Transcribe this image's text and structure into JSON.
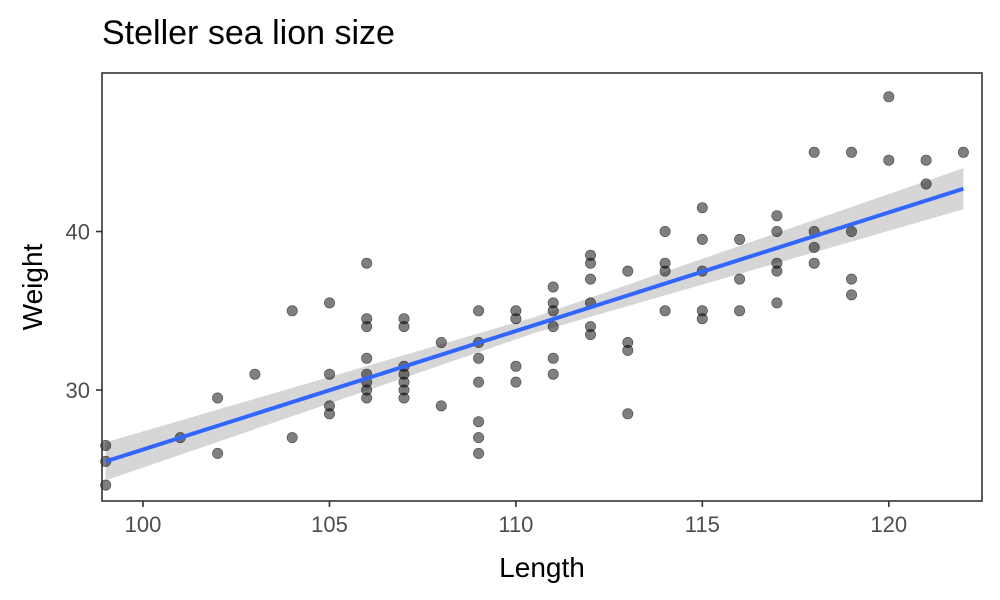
{
  "chart_data": {
    "type": "scatter",
    "title": "Steller sea lion size",
    "xlabel": "Length",
    "ylabel": "Weight",
    "xlim": [
      98.9,
      122.5
    ],
    "ylim": [
      23.0,
      50.0
    ],
    "xticks": [
      100,
      105,
      110,
      115,
      120
    ],
    "yticks": [
      30,
      40
    ],
    "grid": false,
    "colors": {
      "points": "#000000",
      "trend_line": "#3366FF",
      "confidence_band": "#cccccc",
      "panel_border": "#333333",
      "tick_text": "#4d4d4d"
    },
    "trend_line": {
      "method": "linear",
      "x": [
        99,
        122
      ],
      "y": [
        25.5,
        42.7
      ]
    },
    "confidence_band": {
      "x": [
        99,
        110.5,
        122
      ],
      "upper": [
        26.7,
        34.6,
        44.0
      ],
      "lower": [
        24.3,
        33.6,
        41.4
      ]
    },
    "points": [
      [
        99,
        26.5
      ],
      [
        99,
        25.5
      ],
      [
        99,
        24.0
      ],
      [
        101,
        27.0
      ],
      [
        102,
        29.5
      ],
      [
        102,
        26.0
      ],
      [
        103,
        31.0
      ],
      [
        104,
        35.0
      ],
      [
        104,
        27.0
      ],
      [
        105,
        35.5
      ],
      [
        105,
        31.0
      ],
      [
        105,
        29.0
      ],
      [
        105,
        28.5
      ],
      [
        106,
        38.0
      ],
      [
        106,
        34.5
      ],
      [
        106,
        34.0
      ],
      [
        106,
        32.0
      ],
      [
        106,
        31.0
      ],
      [
        106,
        30.5
      ],
      [
        106,
        30.0
      ],
      [
        106,
        29.5
      ],
      [
        107,
        34.5
      ],
      [
        107,
        34.0
      ],
      [
        107,
        31.5
      ],
      [
        107,
        31.0
      ],
      [
        107,
        30.5
      ],
      [
        107,
        30.0
      ],
      [
        107,
        29.5
      ],
      [
        108,
        33.0
      ],
      [
        108,
        29.0
      ],
      [
        109,
        35.0
      ],
      [
        109,
        33.0
      ],
      [
        109,
        32.0
      ],
      [
        109,
        30.5
      ],
      [
        109,
        28.0
      ],
      [
        109,
        27.0
      ],
      [
        109,
        26.0
      ],
      [
        110,
        35.0
      ],
      [
        110,
        34.5
      ],
      [
        110,
        31.5
      ],
      [
        110,
        30.5
      ],
      [
        111,
        36.5
      ],
      [
        111,
        35.5
      ],
      [
        111,
        35.0
      ],
      [
        111,
        34.0
      ],
      [
        111,
        32.0
      ],
      [
        111,
        31.0
      ],
      [
        112,
        38.5
      ],
      [
        112,
        38.0
      ],
      [
        112,
        37.0
      ],
      [
        112,
        35.5
      ],
      [
        112,
        34.0
      ],
      [
        112,
        33.5
      ],
      [
        113,
        37.5
      ],
      [
        113,
        33.0
      ],
      [
        113,
        32.5
      ],
      [
        113,
        28.5
      ],
      [
        114,
        40.0
      ],
      [
        114,
        38.0
      ],
      [
        114,
        37.5
      ],
      [
        114,
        35.0
      ],
      [
        115,
        41.5
      ],
      [
        115,
        39.5
      ],
      [
        115,
        37.5
      ],
      [
        115,
        35.0
      ],
      [
        115,
        34.5
      ],
      [
        116,
        39.5
      ],
      [
        116,
        37.0
      ],
      [
        116,
        35.0
      ],
      [
        117,
        41.0
      ],
      [
        117,
        40.0
      ],
      [
        117,
        38.0
      ],
      [
        117,
        37.5
      ],
      [
        117,
        35.5
      ],
      [
        118,
        45.0
      ],
      [
        118,
        40.0
      ],
      [
        118,
        39.0
      ],
      [
        118,
        38.0
      ],
      [
        119,
        45.0
      ],
      [
        119,
        40.0
      ],
      [
        119,
        37.0
      ],
      [
        119,
        36.0
      ],
      [
        120,
        48.5
      ],
      [
        120,
        44.5
      ],
      [
        121,
        44.5
      ],
      [
        121,
        43.0
      ],
      [
        122,
        45.0
      ]
    ]
  }
}
